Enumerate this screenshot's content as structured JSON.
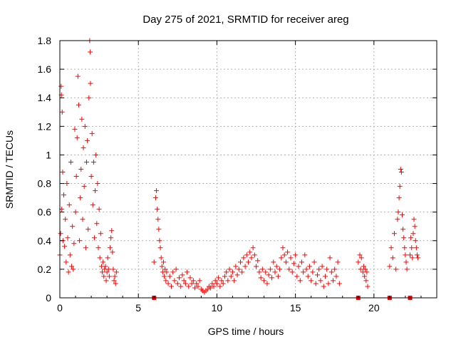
{
  "chart_data": {
    "type": "scatter",
    "title": "Day 275 of 2021, SRMTID for receiver areg",
    "xlabel": "GPS time / hours",
    "ylabel": "SRMTID / TECUs",
    "xlim": [
      0,
      24
    ],
    "ylim": [
      0,
      1.8
    ],
    "xticks": [
      0,
      5,
      10,
      15,
      20
    ],
    "yticks": [
      0,
      0.2,
      0.4,
      0.6,
      0.8,
      1,
      1.2,
      1.4,
      1.6,
      1.8
    ],
    "ytick_labels": [
      "0",
      "0.2",
      "0.4",
      "0.6",
      "0.8",
      "1",
      "1.2",
      "1.4",
      "1.6",
      "1.8"
    ],
    "grid": true,
    "marker": "+",
    "color": "#ff0000",
    "gap_markers_x": [
      6.0,
      19.0,
      21.0,
      22.3
    ],
    "series": [
      {
        "name": "SRMTID",
        "segments": [
          {
            "points": [
              [
                0.0,
                0.3
              ],
              [
                0.05,
                0.45
              ],
              [
                0.08,
                1.48
              ],
              [
                0.1,
                1.42
              ],
              [
                0.12,
                0.62
              ],
              [
                0.15,
                1.3
              ],
              [
                0.18,
                0.88
              ],
              [
                0.2,
                0.4
              ],
              [
                0.25,
                0.72
              ],
              [
                0.3,
                0.36
              ],
              [
                0.35,
                0.55
              ],
              [
                0.4,
                0.25
              ],
              [
                0.45,
                0.8
              ],
              [
                0.5,
                0.42
              ],
              [
                0.55,
                0.18
              ],
              [
                0.6,
                0.65
              ],
              [
                0.65,
                0.3
              ],
              [
                0.7,
                0.95
              ],
              [
                0.75,
                0.22
              ],
              [
                0.8,
                0.5
              ],
              [
                0.85,
                0.2
              ],
              [
                0.9,
                0.38
              ],
              [
                0.95,
                1.18
              ],
              [
                1.0,
                0.6
              ],
              [
                1.05,
                0.85
              ],
              [
                1.1,
                1.12
              ],
              [
                1.15,
                1.55
              ],
              [
                1.2,
                1.35
              ],
              [
                1.25,
                0.4
              ],
              [
                1.3,
                0.7
              ],
              [
                1.35,
                0.9
              ],
              [
                1.4,
                1.25
              ],
              [
                1.45,
                0.55
              ],
              [
                1.5,
                1.05
              ],
              [
                1.55,
                0.78
              ],
              [
                1.6,
                1.2
              ],
              [
                1.65,
                0.35
              ],
              [
                1.7,
                0.95
              ],
              [
                1.75,
                1.1
              ],
              [
                1.8,
                0.48
              ],
              [
                1.85,
                1.4
              ],
              [
                1.9,
                1.8
              ],
              [
                1.93,
                1.72
              ],
              [
                1.95,
                1.5
              ],
              [
                2.0,
                0.85
              ],
              [
                2.05,
                1.15
              ],
              [
                2.1,
                0.65
              ],
              [
                2.15,
                0.95
              ],
              [
                2.2,
                0.42
              ],
              [
                2.25,
                0.75
              ],
              [
                2.3,
                1.0
              ],
              [
                2.35,
                0.52
              ],
              [
                2.4,
                0.8
              ],
              [
                2.45,
                0.35
              ],
              [
                2.5,
                0.62
              ],
              [
                2.55,
                0.28
              ],
              [
                2.6,
                0.45
              ],
              [
                2.65,
                0.22
              ],
              [
                2.7,
                0.18
              ],
              [
                2.75,
                0.25
              ],
              [
                2.8,
                0.15
              ],
              [
                2.85,
                0.2
              ],
              [
                2.9,
                0.22
              ],
              [
                2.95,
                0.12
              ],
              [
                3.0,
                0.18
              ],
              [
                3.05,
                0.28
              ],
              [
                3.1,
                0.2
              ],
              [
                3.15,
                0.15
              ],
              [
                3.2,
                0.35
              ],
              [
                3.25,
                0.42
              ],
              [
                3.3,
                0.47
              ],
              [
                3.35,
                0.32
              ],
              [
                3.4,
                0.2
              ],
              [
                3.45,
                0.12
              ],
              [
                3.5,
                0.15
              ],
              [
                3.55,
                0.1
              ],
              [
                3.6,
                0.18
              ]
            ]
          },
          {
            "points": [
              [
                6.0,
                0.25
              ],
              [
                6.1,
                0.7
              ],
              [
                6.15,
                0.75
              ],
              [
                6.2,
                0.62
              ],
              [
                6.25,
                0.55
              ],
              [
                6.3,
                0.48
              ],
              [
                6.35,
                0.4
              ],
              [
                6.4,
                0.35
              ],
              [
                6.45,
                0.28
              ],
              [
                6.5,
                0.22
              ],
              [
                6.55,
                0.18
              ],
              [
                6.6,
                0.25
              ],
              [
                6.65,
                0.15
              ],
              [
                6.7,
                0.2
              ],
              [
                6.75,
                0.12
              ],
              [
                6.8,
                0.18
              ],
              [
                6.9,
                0.1
              ],
              [
                7.0,
                0.15
              ],
              [
                7.1,
                0.08
              ],
              [
                7.2,
                0.18
              ],
              [
                7.3,
                0.12
              ],
              [
                7.4,
                0.2
              ],
              [
                7.5,
                0.1
              ],
              [
                7.6,
                0.14
              ],
              [
                7.7,
                0.08
              ],
              [
                7.8,
                0.16
              ],
              [
                7.9,
                0.12
              ],
              [
                8.0,
                0.1
              ],
              [
                8.1,
                0.18
              ],
              [
                8.2,
                0.08
              ],
              [
                8.3,
                0.14
              ],
              [
                8.4,
                0.1
              ],
              [
                8.5,
                0.12
              ],
              [
                8.6,
                0.07
              ],
              [
                8.7,
                0.1
              ],
              [
                8.8,
                0.08
              ],
              [
                8.9,
                0.12
              ],
              [
                9.0,
                0.06
              ],
              [
                9.1,
                0.05
              ],
              [
                9.2,
                0.04
              ],
              [
                9.3,
                0.05
              ],
              [
                9.4,
                0.06
              ],
              [
                9.5,
                0.08
              ],
              [
                9.6,
                0.07
              ],
              [
                9.7,
                0.1
              ],
              [
                9.8,
                0.08
              ],
              [
                9.9,
                0.12
              ],
              [
                10.0,
                0.1
              ],
              [
                10.1,
                0.14
              ],
              [
                10.2,
                0.08
              ],
              [
                10.3,
                0.12
              ],
              [
                10.4,
                0.1
              ],
              [
                10.5,
                0.15
              ],
              [
                10.6,
                0.18
              ],
              [
                10.7,
                0.12
              ],
              [
                10.8,
                0.2
              ],
              [
                10.9,
                0.15
              ],
              [
                11.0,
                0.18
              ],
              [
                11.1,
                0.12
              ],
              [
                11.2,
                0.22
              ],
              [
                11.3,
                0.16
              ],
              [
                11.4,
                0.2
              ],
              [
                11.5,
                0.25
              ],
              [
                11.6,
                0.18
              ],
              [
                11.7,
                0.28
              ],
              [
                11.8,
                0.22
              ],
              [
                11.9,
                0.3
              ],
              [
                12.0,
                0.25
              ],
              [
                12.1,
                0.32
              ],
              [
                12.2,
                0.28
              ],
              [
                12.3,
                0.35
              ],
              [
                12.4,
                0.3
              ],
              [
                12.5,
                0.22
              ],
              [
                12.6,
                0.26
              ],
              [
                12.7,
                0.18
              ],
              [
                12.8,
                0.14
              ],
              [
                12.9,
                0.2
              ],
              [
                13.0,
                0.12
              ],
              [
                13.1,
                0.18
              ],
              [
                13.2,
                0.1
              ],
              [
                13.3,
                0.16
              ],
              [
                13.4,
                0.2
              ],
              [
                13.5,
                0.14
              ],
              [
                13.6,
                0.25
              ],
              [
                13.7,
                0.18
              ],
              [
                13.8,
                0.22
              ],
              [
                13.9,
                0.15
              ],
              [
                14.0,
                0.2
              ],
              [
                14.1,
                0.28
              ],
              [
                14.2,
                0.35
              ],
              [
                14.3,
                0.3
              ],
              [
                14.4,
                0.25
              ],
              [
                14.5,
                0.32
              ],
              [
                14.6,
                0.2
              ],
              [
                14.7,
                0.28
              ],
              [
                14.8,
                0.18
              ],
              [
                14.9,
                0.24
              ],
              [
                15.0,
                0.3
              ],
              [
                15.1,
                0.15
              ],
              [
                15.2,
                0.22
              ],
              [
                15.3,
                0.12
              ],
              [
                15.4,
                0.25
              ],
              [
                15.5,
                0.18
              ],
              [
                15.6,
                0.3
              ],
              [
                15.7,
                0.2
              ],
              [
                15.8,
                0.15
              ],
              [
                15.9,
                0.22
              ],
              [
                16.0,
                0.12
              ],
              [
                16.1,
                0.18
              ],
              [
                16.2,
                0.25
              ],
              [
                16.3,
                0.1
              ],
              [
                16.4,
                0.16
              ],
              [
                16.5,
                0.2
              ],
              [
                16.6,
                0.12
              ],
              [
                16.7,
                0.22
              ],
              [
                16.8,
                0.08
              ],
              [
                16.9,
                0.15
              ],
              [
                17.0,
                0.2
              ],
              [
                17.1,
                0.1
              ],
              [
                17.2,
                0.28
              ],
              [
                17.3,
                0.18
              ],
              [
                17.4,
                0.12
              ],
              [
                17.5,
                0.2
              ],
              [
                17.6,
                0.15
              ],
              [
                17.7,
                0.25
              ],
              [
                17.8,
                0.1
              ]
            ]
          },
          {
            "points": [
              [
                19.0,
                0.25
              ],
              [
                19.1,
                0.3
              ],
              [
                19.15,
                0.2
              ],
              [
                19.2,
                0.28
              ],
              [
                19.3,
                0.18
              ],
              [
                19.35,
                0.22
              ],
              [
                19.4,
                0.15
              ],
              [
                19.45,
                0.2
              ],
              [
                19.5,
                0.12
              ],
              [
                19.55,
                0.18
              ],
              [
                19.6,
                0.08
              ]
            ]
          },
          {
            "points": [
              [
                21.0,
                0.22
              ],
              [
                21.1,
                0.35
              ],
              [
                21.2,
                0.28
              ],
              [
                21.3,
                0.45
              ],
              [
                21.4,
                0.2
              ],
              [
                21.5,
                0.55
              ],
              [
                21.55,
                0.6
              ],
              [
                21.6,
                0.7
              ],
              [
                21.65,
                0.78
              ],
              [
                21.7,
                0.9
              ],
              [
                21.75,
                0.88
              ],
              [
                21.8,
                0.58
              ],
              [
                21.85,
                0.48
              ],
              [
                21.9,
                0.42
              ],
              [
                21.95,
                0.35
              ],
              [
                22.0,
                0.3
              ],
              [
                22.05,
                0.25
              ],
              [
                22.1,
                0.2
              ]
            ]
          },
          {
            "points": [
              [
                22.3,
                0.3
              ],
              [
                22.35,
                0.42
              ],
              [
                22.4,
                0.35
              ],
              [
                22.45,
                0.28
              ],
              [
                22.5,
                0.45
              ],
              [
                22.55,
                0.55
              ],
              [
                22.6,
                0.5
              ],
              [
                22.65,
                0.4
              ],
              [
                22.7,
                0.35
              ],
              [
                22.75,
                0.3
              ],
              [
                22.8,
                0.28
              ]
            ]
          }
        ]
      }
    ]
  }
}
